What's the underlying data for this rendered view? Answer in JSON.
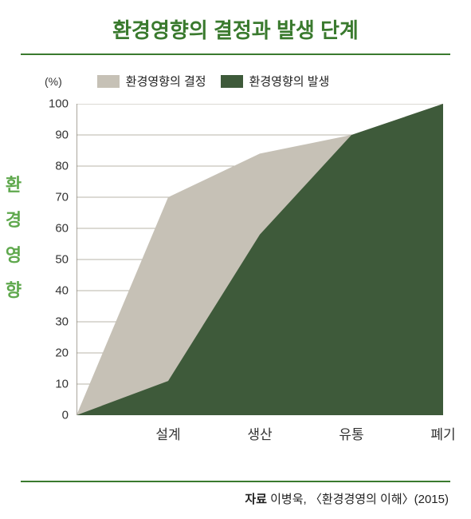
{
  "title": {
    "text": "환경영향의 결정과 발생 단계",
    "color": "#3a7a2e",
    "fontsize": 26
  },
  "rule_color": "#3a7a2e",
  "legend": {
    "y_unit": "(%)",
    "items": [
      {
        "label": "환경영향의 결정",
        "color": "#c6c1b6"
      },
      {
        "label": "환경영향의 발생",
        "color": "#3e5a3a"
      }
    ]
  },
  "y_axis_title": {
    "text": "환\n경\n영\n향",
    "color": "#5fa84d"
  },
  "chart": {
    "type": "area",
    "background_color": "#ffffff",
    "grid_color": "#b9b4a8",
    "axis_color": "#8d887d",
    "ylim": [
      0,
      100
    ],
    "ytick_step": 10,
    "yticks": [
      0,
      10,
      20,
      30,
      40,
      50,
      60,
      70,
      80,
      90,
      100
    ],
    "categories": [
      "",
      "설계",
      "생산",
      "유통",
      "폐기"
    ],
    "series": [
      {
        "name": "결정",
        "color": "#c6c1b6",
        "values": [
          0,
          70,
          84,
          90,
          100
        ]
      },
      {
        "name": "발생",
        "color": "#3e5a3a",
        "values": [
          0,
          11,
          58,
          90,
          100
        ]
      }
    ]
  },
  "source": {
    "label": "자료",
    "text": "이병욱, 〈환경경영의 이해〉(2015)"
  }
}
